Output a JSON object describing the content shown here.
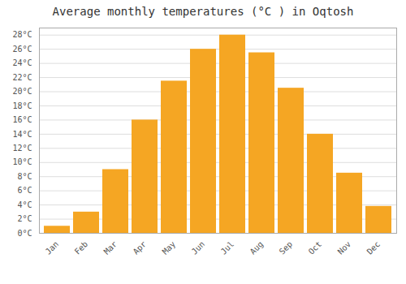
{
  "chart_data": {
    "type": "bar",
    "title": "Average monthly temperatures (°C ) in Oqtosh",
    "categories": [
      "Jan",
      "Feb",
      "Mar",
      "Apr",
      "May",
      "Jun",
      "Jul",
      "Aug",
      "Sep",
      "Oct",
      "Nov",
      "Dec"
    ],
    "values": [
      1,
      3,
      9,
      16,
      21.5,
      26,
      28,
      25.5,
      20.5,
      14,
      8.5,
      3.8
    ],
    "color": "#F5A623",
    "ylim": [
      0,
      29
    ],
    "yticks": [
      {
        "value": 0,
        "label": "0°C"
      },
      {
        "value": 2,
        "label": "2°C"
      },
      {
        "value": 4,
        "label": "4°C"
      },
      {
        "value": 6,
        "label": "6°C"
      },
      {
        "value": 8,
        "label": "8°C"
      },
      {
        "value": 10,
        "label": "10°C"
      },
      {
        "value": 12,
        "label": "12°C"
      },
      {
        "value": 14,
        "label": "14°C"
      },
      {
        "value": 16,
        "label": "16°C"
      },
      {
        "value": 18,
        "label": "18°C"
      },
      {
        "value": 20,
        "label": "20°C"
      },
      {
        "value": 22,
        "label": "22°C"
      },
      {
        "value": 24,
        "label": "24°C"
      },
      {
        "value": 26,
        "label": "26°C"
      },
      {
        "value": 28,
        "label": "28°C"
      }
    ],
    "grid": true
  }
}
